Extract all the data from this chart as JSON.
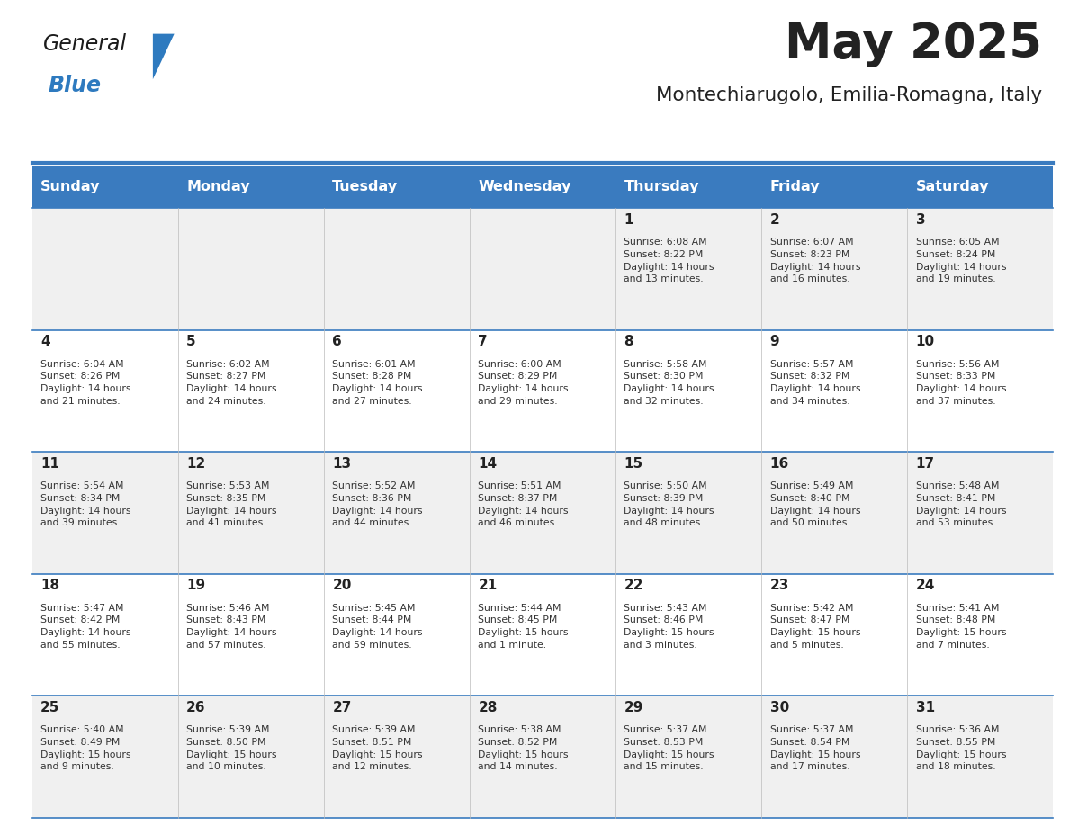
{
  "title": "May 2025",
  "subtitle": "Montechiarugolo, Emilia-Romagna, Italy",
  "days_of_week": [
    "Sunday",
    "Monday",
    "Tuesday",
    "Wednesday",
    "Thursday",
    "Friday",
    "Saturday"
  ],
  "header_bg": "#3a7bbf",
  "header_text": "#ffffff",
  "odd_row_bg": "#f0f0f0",
  "even_row_bg": "#ffffff",
  "line_color": "#3a7bbf",
  "title_color": "#222222",
  "subtitle_color": "#222222",
  "cell_text_color": "#333333",
  "day_num_color": "#222222",
  "weeks": [
    [
      {
        "day": 0,
        "text": ""
      },
      {
        "day": 0,
        "text": ""
      },
      {
        "day": 0,
        "text": ""
      },
      {
        "day": 0,
        "text": ""
      },
      {
        "day": 1,
        "text": "Sunrise: 6:08 AM\nSunset: 8:22 PM\nDaylight: 14 hours\nand 13 minutes."
      },
      {
        "day": 2,
        "text": "Sunrise: 6:07 AM\nSunset: 8:23 PM\nDaylight: 14 hours\nand 16 minutes."
      },
      {
        "day": 3,
        "text": "Sunrise: 6:05 AM\nSunset: 8:24 PM\nDaylight: 14 hours\nand 19 minutes."
      }
    ],
    [
      {
        "day": 4,
        "text": "Sunrise: 6:04 AM\nSunset: 8:26 PM\nDaylight: 14 hours\nand 21 minutes."
      },
      {
        "day": 5,
        "text": "Sunrise: 6:02 AM\nSunset: 8:27 PM\nDaylight: 14 hours\nand 24 minutes."
      },
      {
        "day": 6,
        "text": "Sunrise: 6:01 AM\nSunset: 8:28 PM\nDaylight: 14 hours\nand 27 minutes."
      },
      {
        "day": 7,
        "text": "Sunrise: 6:00 AM\nSunset: 8:29 PM\nDaylight: 14 hours\nand 29 minutes."
      },
      {
        "day": 8,
        "text": "Sunrise: 5:58 AM\nSunset: 8:30 PM\nDaylight: 14 hours\nand 32 minutes."
      },
      {
        "day": 9,
        "text": "Sunrise: 5:57 AM\nSunset: 8:32 PM\nDaylight: 14 hours\nand 34 minutes."
      },
      {
        "day": 10,
        "text": "Sunrise: 5:56 AM\nSunset: 8:33 PM\nDaylight: 14 hours\nand 37 minutes."
      }
    ],
    [
      {
        "day": 11,
        "text": "Sunrise: 5:54 AM\nSunset: 8:34 PM\nDaylight: 14 hours\nand 39 minutes."
      },
      {
        "day": 12,
        "text": "Sunrise: 5:53 AM\nSunset: 8:35 PM\nDaylight: 14 hours\nand 41 minutes."
      },
      {
        "day": 13,
        "text": "Sunrise: 5:52 AM\nSunset: 8:36 PM\nDaylight: 14 hours\nand 44 minutes."
      },
      {
        "day": 14,
        "text": "Sunrise: 5:51 AM\nSunset: 8:37 PM\nDaylight: 14 hours\nand 46 minutes."
      },
      {
        "day": 15,
        "text": "Sunrise: 5:50 AM\nSunset: 8:39 PM\nDaylight: 14 hours\nand 48 minutes."
      },
      {
        "day": 16,
        "text": "Sunrise: 5:49 AM\nSunset: 8:40 PM\nDaylight: 14 hours\nand 50 minutes."
      },
      {
        "day": 17,
        "text": "Sunrise: 5:48 AM\nSunset: 8:41 PM\nDaylight: 14 hours\nand 53 minutes."
      }
    ],
    [
      {
        "day": 18,
        "text": "Sunrise: 5:47 AM\nSunset: 8:42 PM\nDaylight: 14 hours\nand 55 minutes."
      },
      {
        "day": 19,
        "text": "Sunrise: 5:46 AM\nSunset: 8:43 PM\nDaylight: 14 hours\nand 57 minutes."
      },
      {
        "day": 20,
        "text": "Sunrise: 5:45 AM\nSunset: 8:44 PM\nDaylight: 14 hours\nand 59 minutes."
      },
      {
        "day": 21,
        "text": "Sunrise: 5:44 AM\nSunset: 8:45 PM\nDaylight: 15 hours\nand 1 minute."
      },
      {
        "day": 22,
        "text": "Sunrise: 5:43 AM\nSunset: 8:46 PM\nDaylight: 15 hours\nand 3 minutes."
      },
      {
        "day": 23,
        "text": "Sunrise: 5:42 AM\nSunset: 8:47 PM\nDaylight: 15 hours\nand 5 minutes."
      },
      {
        "day": 24,
        "text": "Sunrise: 5:41 AM\nSunset: 8:48 PM\nDaylight: 15 hours\nand 7 minutes."
      }
    ],
    [
      {
        "day": 25,
        "text": "Sunrise: 5:40 AM\nSunset: 8:49 PM\nDaylight: 15 hours\nand 9 minutes."
      },
      {
        "day": 26,
        "text": "Sunrise: 5:39 AM\nSunset: 8:50 PM\nDaylight: 15 hours\nand 10 minutes."
      },
      {
        "day": 27,
        "text": "Sunrise: 5:39 AM\nSunset: 8:51 PM\nDaylight: 15 hours\nand 12 minutes."
      },
      {
        "day": 28,
        "text": "Sunrise: 5:38 AM\nSunset: 8:52 PM\nDaylight: 15 hours\nand 14 minutes."
      },
      {
        "day": 29,
        "text": "Sunrise: 5:37 AM\nSunset: 8:53 PM\nDaylight: 15 hours\nand 15 minutes."
      },
      {
        "day": 30,
        "text": "Sunrise: 5:37 AM\nSunset: 8:54 PM\nDaylight: 15 hours\nand 17 minutes."
      },
      {
        "day": 31,
        "text": "Sunrise: 5:36 AM\nSunset: 8:55 PM\nDaylight: 15 hours\nand 18 minutes."
      }
    ]
  ]
}
